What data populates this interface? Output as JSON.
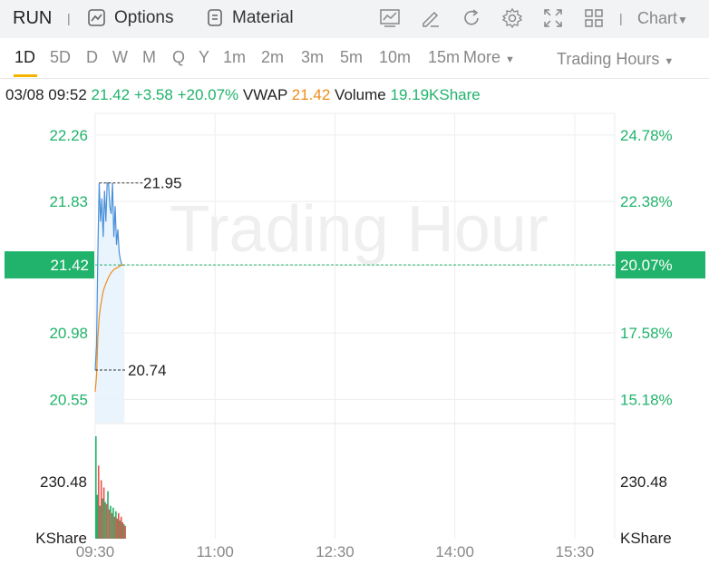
{
  "toolbar": {
    "ticker": "RUN",
    "options_label": "Options",
    "material_label": "Material",
    "chart_label": "Chart",
    "icons": [
      "options-icon",
      "material-icon",
      "indicator-icon",
      "draw-icon",
      "refresh-icon",
      "settings-icon",
      "fullscreen-icon",
      "layout-icon",
      "chevron-down-icon"
    ]
  },
  "tabs": {
    "items": [
      "1D",
      "5D",
      "D",
      "W",
      "M",
      "Q",
      "Y",
      "1m",
      "2m",
      "3m",
      "5m",
      "10m",
      "15m"
    ],
    "active": "1D",
    "more_label": "More",
    "trading_hours_label": "Trading Hours"
  },
  "info": {
    "datetime": "03/08 09:52",
    "price": "21.42",
    "change": "+3.58",
    "change_pct": "+20.07%",
    "vwap_label": "VWAP",
    "vwap": "21.42",
    "volume_label": "Volume",
    "volume": "19.19KShare"
  },
  "watermark": "Trading Hour",
  "colors": {
    "up": "#21b36b",
    "vwap": "#f08c1a",
    "price_line": "#4a90d9",
    "down": "#e8514a",
    "tab_accent": "#f5b300"
  },
  "chart_data": {
    "type": "line",
    "x_ticks": [
      "09:30",
      "11:00",
      "12:30",
      "14:00",
      "15:30"
    ],
    "y_left_ticks": [
      "22.26",
      "21.83",
      "21.42",
      "20.98",
      "20.55"
    ],
    "y_right_ticks": [
      "24.78%",
      "22.38%",
      "20.07%",
      "17.58%",
      "15.18%"
    ],
    "current_price_label": "21.42",
    "current_pct_label": "20.07%",
    "high_label": "21.95",
    "low_label": "20.74",
    "volume_axis_left": [
      "230.48",
      "KShare"
    ],
    "volume_axis_right": [
      "230.48",
      "KShare"
    ],
    "ylim": [
      20.4,
      22.4
    ],
    "xlim_minutes": [
      0,
      390
    ],
    "price_series": {
      "name": "Price",
      "minutes": [
        0,
        1,
        2,
        3,
        4,
        5,
        6,
        7,
        8,
        9,
        10,
        11,
        12,
        13,
        14,
        15,
        16,
        17,
        18,
        19,
        20,
        21,
        22
      ],
      "values": [
        20.74,
        20.9,
        21.5,
        21.95,
        21.7,
        21.85,
        21.6,
        21.9,
        21.7,
        21.95,
        21.95,
        21.8,
        21.75,
        21.95,
        21.6,
        21.8,
        21.55,
        21.65,
        21.5,
        21.45,
        21.42,
        21.42,
        21.42
      ]
    },
    "vwap_series": {
      "name": "VWAP",
      "minutes": [
        0,
        1,
        2,
        3,
        4,
        5,
        6,
        8,
        10,
        12,
        14,
        16,
        18,
        20,
        22
      ],
      "values": [
        20.6,
        20.7,
        20.95,
        21.08,
        21.15,
        21.2,
        21.25,
        21.3,
        21.34,
        21.37,
        21.39,
        21.4,
        21.41,
        21.42,
        21.42
      ]
    },
    "volume_series": {
      "name": "Volume",
      "values": [
        280,
        120,
        200,
        90,
        160,
        110,
        140,
        100,
        95,
        130,
        80,
        90,
        70,
        85,
        60,
        75,
        55,
        70,
        50,
        60,
        45,
        40,
        35
      ],
      "directions": [
        "up",
        "up",
        "down",
        "up",
        "down",
        "up",
        "down",
        "up",
        "down",
        "up",
        "down",
        "up",
        "down",
        "up",
        "down",
        "up",
        "down",
        "down",
        "up",
        "down",
        "down",
        "up",
        "down"
      ]
    }
  }
}
